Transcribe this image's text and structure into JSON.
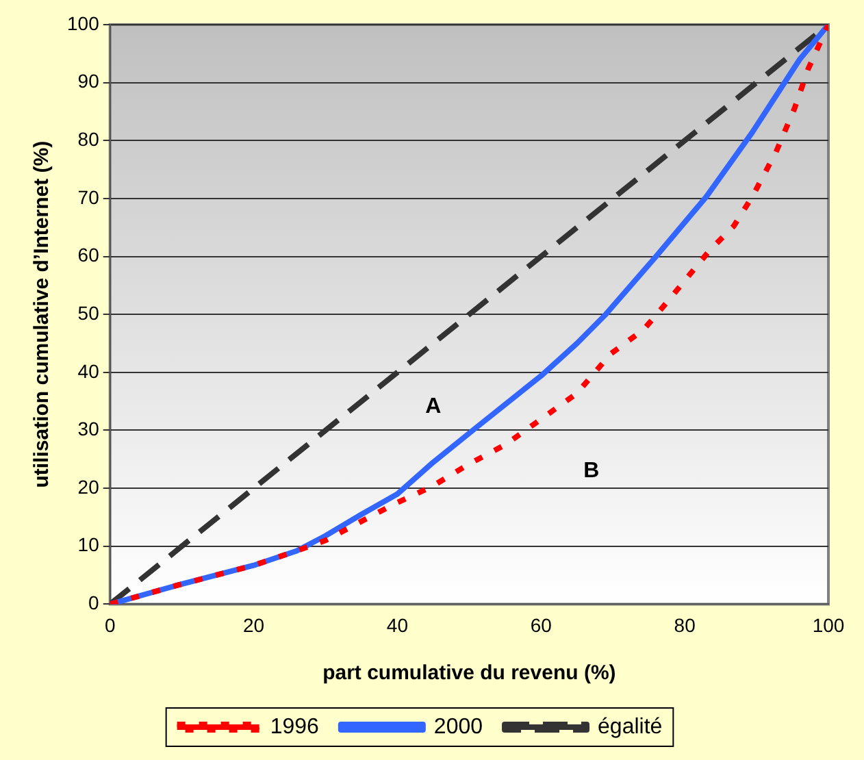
{
  "chart_data": {
    "type": "line",
    "xlabel": "part cumulative du revenu (%)",
    "ylabel": "utilisation cumulative d’Internet (%)",
    "xlim": [
      0,
      100
    ],
    "xticks": [
      0,
      20,
      40,
      60,
      80,
      100
    ],
    "ylim": [
      0,
      100
    ],
    "yticks": [
      0,
      10,
      20,
      30,
      40,
      50,
      60,
      70,
      80,
      90,
      100
    ],
    "grid": "y",
    "legend": "bottom",
    "marker": "none",
    "annotations": [
      "A",
      "B"
    ],
    "series": [
      {
        "name": "1996",
        "color": "#ff0000",
        "line_style": "dotted",
        "x": [
          0,
          9.5,
          20,
          26,
          30,
          35,
          39.6,
          44.8,
          50,
          55,
          59.3,
          65,
          69.7,
          74.3,
          77.6,
          83.5,
          86.8,
          89.4,
          92.7,
          95.3,
          97.2,
          100
        ],
        "values": [
          0,
          3.3,
          6.7,
          9.2,
          11,
          14.3,
          17.3,
          20.3,
          24.2,
          27.5,
          31.3,
          36.4,
          43.2,
          47.4,
          52.2,
          61.1,
          65.2,
          70.3,
          78,
          85.6,
          92.4,
          100
        ]
      },
      {
        "name": "2000",
        "color": "#3366ff",
        "line_style": "solid",
        "x": [
          0,
          9.5,
          20,
          26,
          30,
          35,
          40,
          45,
          51,
          60,
          65,
          69,
          76,
          83,
          89.4,
          96,
          100
        ],
        "values": [
          0,
          3.3,
          6.7,
          9.2,
          11.8,
          15.5,
          19,
          24.5,
          30.5,
          39.4,
          45,
          50,
          60,
          70.3,
          81.4,
          94,
          100
        ]
      },
      {
        "name": "égalité",
        "color": "#333333",
        "line_style": "dashed",
        "x": [
          0,
          100
        ],
        "values": [
          0,
          100
        ]
      }
    ]
  }
}
